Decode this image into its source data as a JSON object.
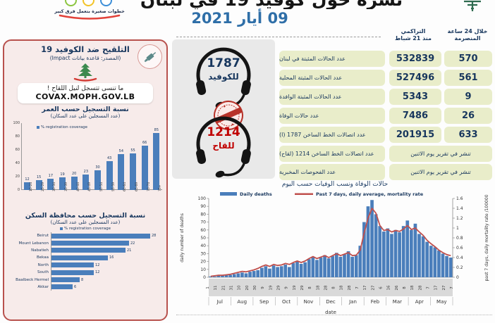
{
  "header": {
    "logo_tagline": "خطوات صغيرة بتعمل فرق كبير",
    "title": "نشرة حول كوفيد 19 في لبنان",
    "date": "09 أيار 2021"
  },
  "hotlines": {
    "covid_number": "1787",
    "covid_label": "للكوفيد",
    "vaccine_number": "1214",
    "vaccine_label": "للقاح"
  },
  "stats_table": {
    "cum_line1": "التراكمي",
    "cum_line2": "منذ 21 شباط",
    "h24_line1": "خلال 24 ساعة",
    "h24_line2": "المنصرمة",
    "rows": [
      {
        "label": "عدد الحالات المثبتة في لبنان",
        "cumulative": "532839",
        "last24h": "570"
      },
      {
        "label": "عدد الحالات المثبتة المحلية",
        "cumulative": "527496",
        "last24h": "561"
      },
      {
        "label": "عدد الحالات المثبتة الوافدة",
        "cumulative": "5343",
        "last24h": "9"
      },
      {
        "label": "عدد حالات الوفاة",
        "cumulative": "7486",
        "last24h": "26"
      },
      {
        "label": "عدد اتصالات الخط الساخن 1787 (ا)",
        "cumulative": "201915",
        "last24h": "633"
      },
      {
        "label": "عدد اتصالات الخط الساخن 1214 (لقاح)",
        "merged": "تنشر في تقرير يوم الاثنين"
      },
      {
        "label": "عدد الفحوصات المخبرية",
        "merged": "تنشر في تقرير يوم الاثنين"
      }
    ]
  },
  "vaccination_panel": {
    "title": "التلقيح ضد الكوفيد 19",
    "source": "(المصدر: قاعدة بيانات Impact)",
    "reminder_line1": "ما تنسى تتسجل لنيل اللقاح !",
    "reminder_line2": "COVAX.MOPH.GOV.LB"
  },
  "colors": {
    "bar_blue": "#4a7ebb",
    "line_red": "#c0504d",
    "navy": "#17365d",
    "hotline_red": "#c00000",
    "panel_pink": "#f7ebea",
    "panel_border": "#b8514d",
    "pill_yellow": "#e9edca"
  },
  "chart_data": [
    {
      "type": "bar",
      "title": "نسبة التسجيل حسب العمر",
      "subtitle": "(عدد المسجلين على عدد السكان)",
      "legend": "% registration coverage",
      "categories": [
        "10-24",
        "25-29",
        "30-34",
        "35-39",
        "40-44",
        "45-49",
        "50-54",
        "55-59",
        "60-64",
        "65-69",
        "70-74",
        "75+"
      ],
      "values": [
        12,
        15,
        17,
        19,
        20,
        23,
        30,
        43,
        54,
        55,
        66,
        85
      ],
      "ylim": [
        0,
        100
      ],
      "yticks": [
        0,
        20,
        40,
        60,
        80,
        100
      ]
    },
    {
      "type": "bar",
      "orientation": "horizontal",
      "title": "نسبة التسجيل حسب محافظة السكن",
      "subtitle": "(عدد المسجلين على عدد السكان)",
      "legend": "% registration coverage",
      "categories": [
        "Beirut",
        "Mount Lebanon",
        "Nabatieh",
        "Bekaa",
        "North",
        "South",
        "Baalbeck Hermel",
        "Akkar"
      ],
      "values": [
        28,
        22,
        21,
        16,
        12,
        12,
        8,
        6
      ],
      "xlim": [
        0,
        30
      ]
    },
    {
      "type": "bar+line",
      "title": "حالات الوفاة ونسب الوفيات حسب اليوم",
      "legend": [
        "Daily deaths",
        "Past 7 days, daily average, mortality rate"
      ],
      "ylabel_left": "daily number of deaths",
      "ylabel_right": "past 7 days, daily mortality rate /100000",
      "xlabel": "date",
      "ylim_left": [
        0,
        100
      ],
      "ylim_right": [
        0,
        1.6
      ],
      "yticks_left": [
        0,
        10,
        20,
        30,
        40,
        50,
        60,
        70,
        80,
        90,
        100
      ],
      "yticks_right": [
        0,
        0.2,
        0.4,
        0.6,
        0.8,
        1,
        1.2,
        1.4,
        1.6
      ],
      "x_day_ticks": [
        "1",
        "11",
        "21",
        "31",
        "10",
        "20",
        "30",
        "9",
        "19",
        "29",
        "9",
        "19",
        "29",
        "8",
        "18",
        "28",
        "8",
        "18",
        "28",
        "7",
        "17",
        "27",
        "6",
        "16",
        "26",
        "8",
        "18",
        "28",
        "7",
        "17",
        "27",
        "7"
      ],
      "x_months": [
        "Jul",
        "Aug",
        "Sep",
        "Oct",
        "Nov",
        "Dec",
        "Jan",
        "Feb",
        "Mar",
        "Apr",
        "May"
      ],
      "series": {
        "daily_deaths": [
          1,
          1,
          2,
          2,
          3,
          3,
          4,
          5,
          6,
          5,
          7,
          8,
          9,
          12,
          14,
          11,
          15,
          13,
          14,
          16,
          13,
          18,
          20,
          17,
          19,
          23,
          26,
          22,
          25,
          28,
          24,
          27,
          31,
          26,
          29,
          33,
          26,
          28,
          40,
          70,
          90,
          98,
          80,
          65,
          58,
          62,
          55,
          60,
          57,
          65,
          72,
          60,
          68,
          55,
          52,
          45,
          40,
          38,
          34,
          30,
          27,
          25
        ],
        "mortality_rate_7d": [
          0.02,
          0.03,
          0.04,
          0.04,
          0.05,
          0.06,
          0.08,
          0.1,
          0.12,
          0.11,
          0.13,
          0.15,
          0.18,
          0.22,
          0.25,
          0.22,
          0.26,
          0.24,
          0.25,
          0.28,
          0.26,
          0.3,
          0.33,
          0.3,
          0.33,
          0.38,
          0.42,
          0.38,
          0.41,
          0.44,
          0.4,
          0.44,
          0.48,
          0.44,
          0.47,
          0.5,
          0.44,
          0.45,
          0.55,
          0.9,
          1.2,
          1.4,
          1.3,
          1.05,
          0.95,
          0.97,
          0.92,
          0.95,
          0.93,
          0.98,
          1.05,
          0.97,
          1.0,
          0.92,
          0.85,
          0.75,
          0.68,
          0.62,
          0.55,
          0.5,
          0.46,
          0.44
        ]
      }
    }
  ]
}
